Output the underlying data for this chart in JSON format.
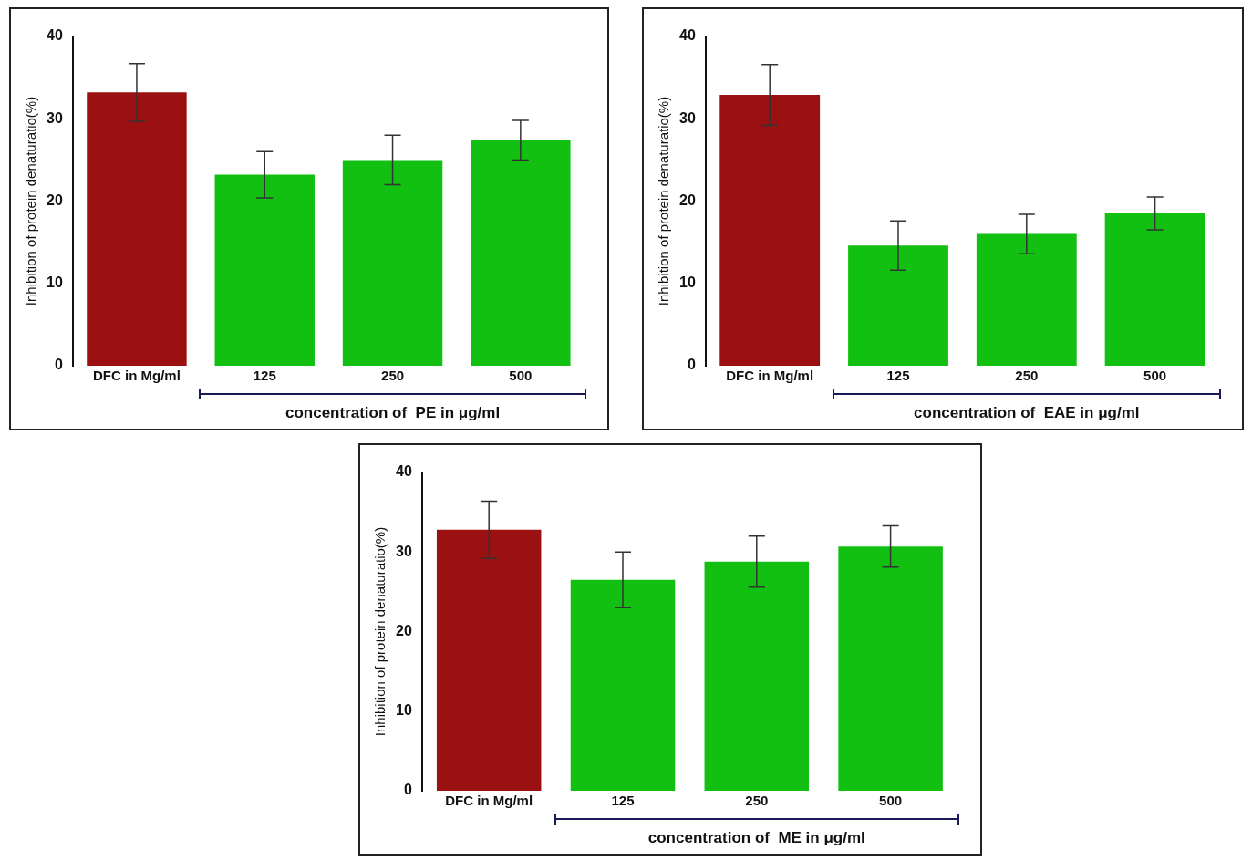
{
  "chart_data": [
    {
      "type": "bar",
      "categories": [
        "DFC in Mg/ml",
        "125",
        "250",
        "500"
      ],
      "values": [
        33.2,
        23.2,
        25.0,
        27.4
      ],
      "errors": [
        3.5,
        2.8,
        3.0,
        2.4
      ],
      "colors": [
        "#9b1010",
        "#11c011",
        "#11c011",
        "#11c011"
      ],
      "xlabel": "concentration of  PE in μg/ml",
      "ylabel": "Inhibition of protein denaturatio(%)",
      "ylim": [
        0,
        40
      ],
      "yticks": [
        0,
        10,
        20,
        30,
        40
      ],
      "grid": false,
      "legend": false
    },
    {
      "type": "bar",
      "categories": [
        "DFC in Mg/ml",
        "125",
        "250",
        "500"
      ],
      "values": [
        32.9,
        14.6,
        16.0,
        18.5
      ],
      "errors": [
        3.7,
        3.0,
        2.4,
        2.0
      ],
      "colors": [
        "#9b1010",
        "#11c011",
        "#11c011",
        "#11c011"
      ],
      "xlabel": "concentration of  EAE in μg/ml",
      "ylabel": "Inhibition of protein denaturatio(%)",
      "ylim": [
        0,
        40
      ],
      "yticks": [
        0,
        10,
        20,
        30,
        40
      ],
      "grid": false,
      "legend": false
    },
    {
      "type": "bar",
      "categories": [
        "DFC in Mg/ml",
        "125",
        "250",
        "500"
      ],
      "values": [
        32.8,
        26.5,
        28.8,
        30.7
      ],
      "errors": [
        3.6,
        3.5,
        3.2,
        2.6
      ],
      "colors": [
        "#9b1010",
        "#11c011",
        "#11c011",
        "#11c011"
      ],
      "xlabel": "concentration of  ME in μg/ml",
      "ylabel": "Inhibition of protein denaturatio(%)",
      "ylim": [
        0,
        40
      ],
      "yticks": [
        0,
        10,
        20,
        30,
        40
      ],
      "grid": false,
      "legend": false
    }
  ]
}
